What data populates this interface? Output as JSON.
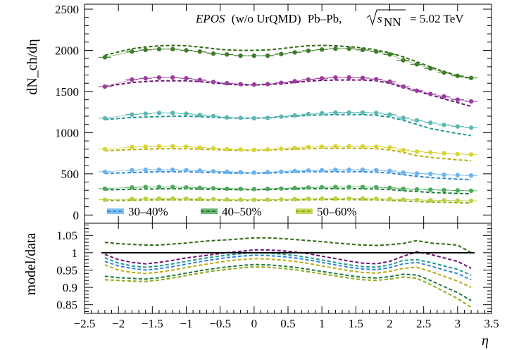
{
  "chart_data": [
    {
      "type": "scatter",
      "panel": "top",
      "ylabel": "dN_ch/dη",
      "annotation": {
        "model": "EPOS",
        "detail": "(w/o UrQMD)",
        "system": "Pb–Pb,",
        "energy_symbol": "s",
        "energy_sub": "NN",
        "energy_value": "= 5.02 TeV"
      },
      "xlim": [
        -2.5,
        3.5
      ],
      "ylim": [
        -100,
        2560
      ],
      "yticks": [
        "0",
        "500",
        "1000",
        "1500",
        "2000",
        "2500"
      ],
      "y_tick_values": [
        0,
        500,
        1000,
        1500,
        2000,
        2500
      ],
      "legend": {
        "placement": "bottom-left",
        "entries": [
          "30–40%",
          "40–50%",
          "50–60%"
        ]
      },
      "x": [
        -2.2,
        -1.8,
        -1.6,
        -1.4,
        -1.2,
        -1.0,
        -0.8,
        -0.6,
        -0.4,
        -0.2,
        0.0,
        0.2,
        0.4,
        0.6,
        0.8,
        1.0,
        1.2,
        1.4,
        1.6,
        1.8,
        2.0,
        2.2,
        2.4,
        2.6,
        2.8,
        3.0,
        3.2
      ],
      "series": [
        {
          "centrality_label": "",
          "color": "#3f7d28",
          "model_color": "#2f6a14",
          "data": [
            1915,
            1985,
            2005,
            2015,
            2015,
            2000,
            1985,
            1960,
            1950,
            1935,
            1935,
            1935,
            1955,
            1975,
            1995,
            2010,
            2020,
            2020,
            2005,
            1985,
            1950,
            1880,
            1830,
            1780,
            1730,
            1690,
            1665
          ],
          "model": [
            1940,
            2020,
            2040,
            2055,
            2060,
            2055,
            2040,
            2020,
            2005,
            2000,
            2000,
            2005,
            2020,
            2040,
            2055,
            2060,
            2055,
            2045,
            2030,
            2005,
            1970,
            1920,
            1860,
            1800,
            1740,
            1690,
            1660
          ]
        },
        {
          "centrality_label": "",
          "color": "#9a3c9c",
          "model_color": "#6a1470",
          "data": [
            1560,
            1645,
            1660,
            1670,
            1670,
            1660,
            1640,
            1615,
            1600,
            1590,
            1585,
            1590,
            1605,
            1625,
            1645,
            1660,
            1670,
            1670,
            1665,
            1650,
            1620,
            1560,
            1510,
            1470,
            1440,
            1400,
            1380
          ],
          "model": [
            1560,
            1610,
            1620,
            1630,
            1630,
            1630,
            1620,
            1605,
            1590,
            1580,
            1580,
            1585,
            1595,
            1610,
            1625,
            1635,
            1640,
            1640,
            1640,
            1630,
            1600,
            1550,
            1510,
            1460,
            1410,
            1365,
            1320
          ]
        },
        {
          "centrality_label": "",
          "color": "#5ab8b4",
          "model_color": "#1f9a94",
          "data": [
            1175,
            1220,
            1230,
            1240,
            1240,
            1230,
            1215,
            1200,
            1185,
            1180,
            1175,
            1180,
            1195,
            1210,
            1225,
            1235,
            1245,
            1245,
            1245,
            1240,
            1220,
            1180,
            1150,
            1120,
            1095,
            1075,
            1060
          ],
          "model": [
            1160,
            1185,
            1190,
            1195,
            1200,
            1200,
            1195,
            1185,
            1180,
            1175,
            1175,
            1180,
            1190,
            1200,
            1210,
            1215,
            1220,
            1220,
            1220,
            1210,
            1190,
            1150,
            1100,
            1050,
            1020,
            990,
            965
          ]
        },
        {
          "centrality_label": "",
          "color": "#d8d436",
          "model_color": "#b8ac12",
          "data": [
            800,
            825,
            830,
            835,
            835,
            830,
            820,
            810,
            800,
            795,
            790,
            795,
            805,
            815,
            825,
            830,
            835,
            835,
            835,
            830,
            820,
            790,
            770,
            760,
            750,
            740,
            735
          ],
          "model": [
            780,
            795,
            800,
            805,
            805,
            805,
            800,
            795,
            790,
            785,
            785,
            790,
            795,
            800,
            805,
            810,
            810,
            810,
            810,
            805,
            790,
            760,
            720,
            700,
            685,
            670,
            660
          ]
        },
        {
          "centrality_label": "30–40%",
          "color": "#6ab4f0",
          "model_color": "#2f86d6",
          "data": [
            525,
            545,
            550,
            550,
            550,
            545,
            540,
            530,
            525,
            520,
            515,
            520,
            525,
            535,
            540,
            545,
            550,
            550,
            550,
            545,
            535,
            515,
            505,
            500,
            490,
            485,
            480
          ],
          "model": [
            505,
            515,
            520,
            525,
            525,
            525,
            520,
            515,
            510,
            510,
            510,
            510,
            515,
            520,
            525,
            525,
            525,
            525,
            525,
            520,
            510,
            490,
            470,
            455,
            445,
            435,
            430
          ]
        },
        {
          "centrality_label": "40–50%",
          "color": "#4caa5a",
          "model_color": "#1e7a3c",
          "data": [
            320,
            335,
            340,
            340,
            340,
            335,
            330,
            325,
            320,
            318,
            315,
            318,
            322,
            328,
            333,
            337,
            340,
            340,
            340,
            337,
            330,
            318,
            312,
            308,
            302,
            298,
            295
          ],
          "model": [
            305,
            312,
            315,
            317,
            318,
            318,
            315,
            312,
            310,
            308,
            308,
            310,
            312,
            316,
            318,
            320,
            320,
            320,
            318,
            315,
            308,
            296,
            285,
            275,
            268,
            262,
            258
          ]
        },
        {
          "centrality_label": "50–60%",
          "color": "#b6d23e",
          "model_color": "#8caa16",
          "data": [
            185,
            195,
            198,
            200,
            200,
            198,
            195,
            192,
            188,
            186,
            185,
            186,
            189,
            193,
            197,
            199,
            200,
            200,
            200,
            198,
            194,
            187,
            183,
            180,
            177,
            175,
            173
          ],
          "model": [
            175,
            180,
            182,
            184,
            185,
            185,
            183,
            181,
            180,
            179,
            179,
            180,
            182,
            184,
            186,
            187,
            187,
            187,
            186,
            184,
            179,
            170,
            163,
            158,
            154,
            151,
            148
          ]
        }
      ]
    },
    {
      "type": "line",
      "panel": "bottom",
      "xlabel": "η",
      "ylabel": "model/data",
      "xlim": [
        -2.5,
        3.5
      ],
      "ylim": [
        0.825,
        1.085
      ],
      "xticks": [
        "−2.5",
        "−2",
        "−1.5",
        "−1",
        "−0.5",
        "0",
        "0.5",
        "1",
        "1.5",
        "2",
        "2.5",
        "3",
        "3.5"
      ],
      "x_tick_values": [
        -2.5,
        -2.0,
        -1.5,
        -1.0,
        -0.5,
        0.0,
        0.5,
        1.0,
        1.5,
        2.0,
        2.5,
        3.0,
        3.5
      ],
      "yticks": [
        "0.85",
        "0.9",
        "0.95",
        "1",
        "1.05"
      ],
      "y_tick_values": [
        0.85,
        0.9,
        0.95,
        1.0,
        1.05
      ],
      "reference_line": 1.0,
      "x": [
        -2.2,
        -2.0,
        -1.8,
        -1.6,
        -1.4,
        -1.2,
        -1.0,
        -0.8,
        -0.6,
        -0.4,
        -0.2,
        0.0,
        0.2,
        0.4,
        0.6,
        0.8,
        1.0,
        1.2,
        1.4,
        1.6,
        1.8,
        2.0,
        2.2,
        2.4,
        2.6,
        2.8,
        3.0,
        3.2
      ],
      "series": [
        {
          "color": "#2f6a14",
          "values": [
            1.03,
            1.026,
            1.024,
            1.022,
            1.022,
            1.025,
            1.028,
            1.032,
            1.035,
            1.037,
            1.04,
            1.043,
            1.043,
            1.041,
            1.038,
            1.035,
            1.032,
            1.028,
            1.025,
            1.022,
            1.021,
            1.023,
            1.027,
            1.035,
            1.028,
            1.025,
            1.022,
            1.0
          ]
        },
        {
          "color": "#6a1470",
          "values": [
            0.995,
            0.98,
            0.972,
            0.968,
            0.972,
            0.978,
            0.985,
            0.99,
            0.995,
            1.0,
            1.004,
            1.008,
            1.008,
            1.006,
            1.002,
            0.997,
            0.99,
            0.983,
            0.976,
            0.97,
            0.968,
            0.975,
            0.99,
            1.003,
            0.995,
            0.985,
            0.975,
            0.955
          ]
        },
        {
          "color": "#1f9a94",
          "values": [
            0.985,
            0.97,
            0.962,
            0.958,
            0.962,
            0.968,
            0.975,
            0.982,
            0.988,
            0.993,
            0.997,
            1.0,
            0.999,
            0.996,
            0.992,
            0.986,
            0.979,
            0.972,
            0.965,
            0.96,
            0.958,
            0.965,
            0.978,
            0.98,
            0.972,
            0.962,
            0.952,
            0.935
          ]
        },
        {
          "color": "#2f86d6",
          "values": [
            0.975,
            0.962,
            0.955,
            0.95,
            0.954,
            0.96,
            0.967,
            0.974,
            0.98,
            0.986,
            0.99,
            0.993,
            0.992,
            0.989,
            0.985,
            0.979,
            0.972,
            0.965,
            0.958,
            0.953,
            0.951,
            0.957,
            0.968,
            0.972,
            0.962,
            0.95,
            0.94,
            0.922
          ]
        },
        {
          "color": "#b8ac12",
          "values": [
            0.965,
            0.95,
            0.943,
            0.94,
            0.944,
            0.95,
            0.957,
            0.964,
            0.97,
            0.976,
            0.98,
            0.983,
            0.982,
            0.979,
            0.975,
            0.969,
            0.962,
            0.955,
            0.948,
            0.943,
            0.941,
            0.946,
            0.955,
            0.958,
            0.946,
            0.932,
            0.918,
            0.9
          ]
        },
        {
          "color": "#1e7a3c",
          "values": [
            0.932,
            0.928,
            0.926,
            0.924,
            0.928,
            0.934,
            0.941,
            0.948,
            0.954,
            0.959,
            0.963,
            0.966,
            0.965,
            0.962,
            0.958,
            0.952,
            0.946,
            0.94,
            0.934,
            0.929,
            0.927,
            0.931,
            0.938,
            0.936,
            0.92,
            0.902,
            0.885,
            0.862
          ]
        },
        {
          "color": "#8caa16",
          "values": [
            0.922,
            0.92,
            0.918,
            0.917,
            0.921,
            0.927,
            0.934,
            0.941,
            0.947,
            0.952,
            0.956,
            0.959,
            0.958,
            0.955,
            0.951,
            0.945,
            0.939,
            0.933,
            0.927,
            0.922,
            0.92,
            0.924,
            0.93,
            0.926,
            0.908,
            0.888,
            0.868,
            0.842
          ]
        }
      ]
    }
  ]
}
